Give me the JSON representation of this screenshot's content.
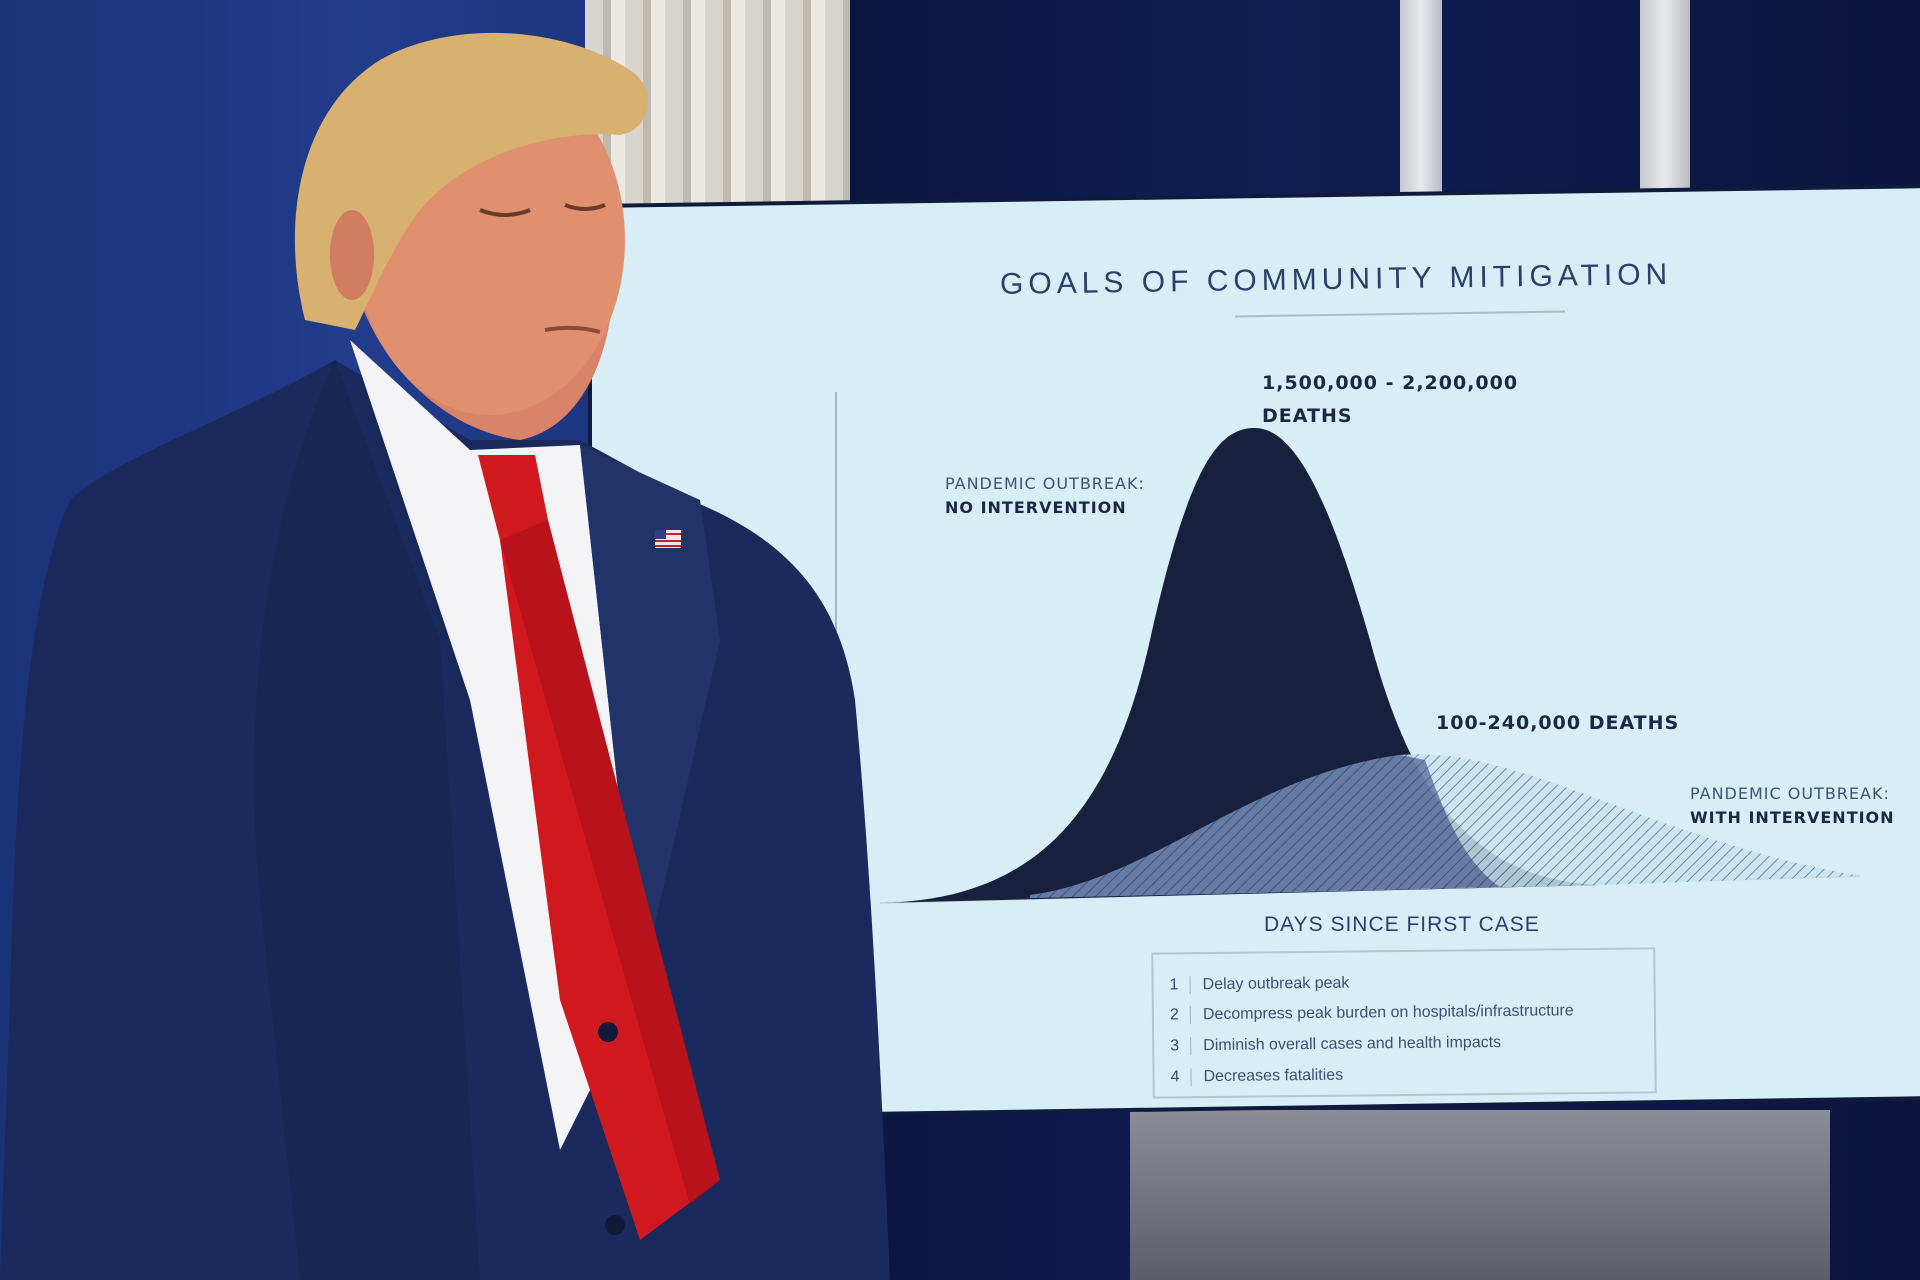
{
  "chart": {
    "title": "GOALS OF COMMUNITY MITIGATION",
    "peak_value": "1,500,000 - 2,200,000",
    "peak_unit": "DEATHS",
    "no_intervention_line1": "PANDEMIC OUTBREAK:",
    "no_intervention_line2": "NO INTERVENTION",
    "intervention_peak": "100-240,000 DEATHS",
    "with_intervention_line1": "PANDEMIC OUTBREAK:",
    "with_intervention_line2": "WITH INTERVENTION",
    "x_axis_label": "DAYS SINCE FIRST CASE",
    "goals": [
      {
        "num": "1",
        "text": "Delay outbreak peak"
      },
      {
        "num": "2",
        "text": "Decompress peak burden on hospitals/infrastructure"
      },
      {
        "num": "3",
        "text": "Diminish overall cases and health impacts"
      },
      {
        "num": "4",
        "text": "Decreases fatalities"
      }
    ]
  },
  "colors": {
    "screen_bg": "#d8eef6",
    "no_intervention_curve": "#17213d",
    "with_intervention_curve": "#2b3c7a",
    "suit": "#1b2a5c",
    "tie": "#d0181f",
    "backdrop": "#223c8c"
  },
  "icons": [
    "flag-pin-icon"
  ]
}
